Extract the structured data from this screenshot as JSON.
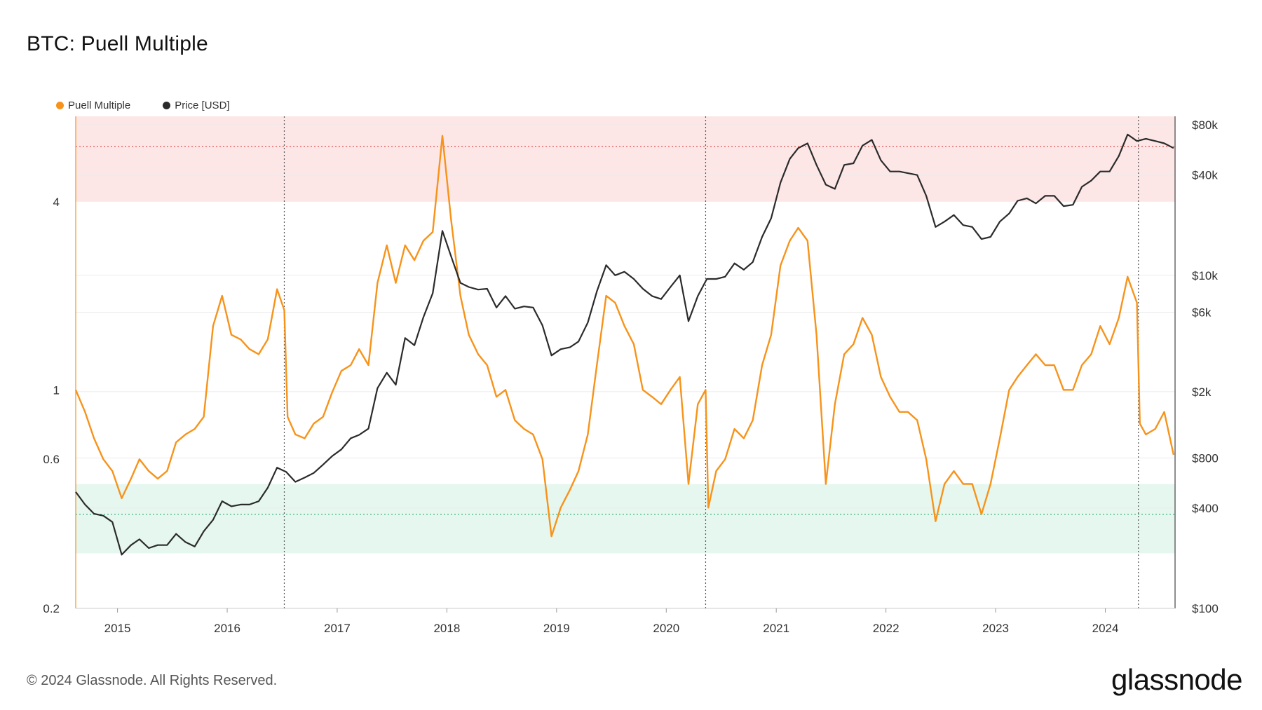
{
  "title": "BTC: Puell Multiple",
  "footer": "© 2024 Glassnode. All Rights Reserved.",
  "logo_text": "glassnode",
  "legend": [
    {
      "label": "Puell Multiple",
      "color": "#f7931a"
    },
    {
      "label": "Price [USD]",
      "color": "#2b2b2b"
    }
  ],
  "chart_data": {
    "type": "line",
    "title": "BTC: Puell Multiple",
    "x_range": [
      "2014-08-15",
      "2024-08-20"
    ],
    "x_tick_labels": [
      "2015",
      "2016",
      "2017",
      "2018",
      "2019",
      "2020",
      "2021",
      "2022",
      "2023",
      "2024"
    ],
    "y_left": {
      "scale": "log",
      "range": [
        0.2,
        7.5
      ],
      "tick_labels": [
        "0.2",
        "0.6",
        "1",
        "4"
      ],
      "tick_values": [
        0.2,
        0.6,
        1,
        4
      ]
    },
    "y_right": {
      "scale": "log",
      "range": [
        100,
        90000
      ],
      "tick_labels": [
        "$100",
        "$400",
        "$800",
        "$2k",
        "$6k",
        "$10k",
        "$40k",
        "$80k"
      ],
      "tick_values": [
        100,
        400,
        800,
        2000,
        6000,
        10000,
        40000,
        80000
      ]
    },
    "zones": {
      "overvalued": {
        "from": 4,
        "to": 7.5,
        "color": "#fde6e6"
      },
      "undervalued": {
        "from": 0.3,
        "to": 0.5,
        "color": "#e6f7ef"
      }
    },
    "reference_lines": [
      {
        "value": 6.0,
        "color": "#e05555"
      },
      {
        "value": 0.4,
        "color": "#3fb27f"
      }
    ],
    "halving_dates": [
      "2016-07-09",
      "2020-05-11",
      "2024-04-20"
    ],
    "series": [
      {
        "name": "Puell Multiple",
        "color": "#f7931a",
        "points": [
          [
            "2014-08-15",
            1.0
          ],
          [
            "2014-09-15",
            0.85
          ],
          [
            "2014-10-15",
            0.7
          ],
          [
            "2014-11-15",
            0.6
          ],
          [
            "2014-12-15",
            0.55
          ],
          [
            "2015-01-15",
            0.45
          ],
          [
            "2015-02-15",
            0.52
          ],
          [
            "2015-03-15",
            0.6
          ],
          [
            "2015-04-15",
            0.55
          ],
          [
            "2015-05-15",
            0.52
          ],
          [
            "2015-06-15",
            0.55
          ],
          [
            "2015-07-15",
            0.68
          ],
          [
            "2015-08-15",
            0.72
          ],
          [
            "2015-09-15",
            0.75
          ],
          [
            "2015-10-15",
            0.82
          ],
          [
            "2015-11-15",
            1.6
          ],
          [
            "2015-12-15",
            2.0
          ],
          [
            "2016-01-15",
            1.5
          ],
          [
            "2016-02-15",
            1.45
          ],
          [
            "2016-03-15",
            1.35
          ],
          [
            "2016-04-15",
            1.3
          ],
          [
            "2016-05-15",
            1.45
          ],
          [
            "2016-06-15",
            2.1
          ],
          [
            "2016-07-09",
            1.8
          ],
          [
            "2016-07-20",
            0.82
          ],
          [
            "2016-08-15",
            0.72
          ],
          [
            "2016-09-15",
            0.7
          ],
          [
            "2016-10-15",
            0.78
          ],
          [
            "2016-11-15",
            0.82
          ],
          [
            "2016-12-15",
            0.98
          ],
          [
            "2017-01-15",
            1.15
          ],
          [
            "2017-02-15",
            1.2
          ],
          [
            "2017-03-15",
            1.35
          ],
          [
            "2017-04-15",
            1.2
          ],
          [
            "2017-05-15",
            2.2
          ],
          [
            "2017-06-15",
            2.9
          ],
          [
            "2017-07-15",
            2.2
          ],
          [
            "2017-08-15",
            2.9
          ],
          [
            "2017-09-15",
            2.6
          ],
          [
            "2017-10-15",
            3.0
          ],
          [
            "2017-11-15",
            3.2
          ],
          [
            "2017-12-17",
            6.5
          ],
          [
            "2018-01-15",
            3.5
          ],
          [
            "2018-02-15",
            2.0
          ],
          [
            "2018-03-15",
            1.5
          ],
          [
            "2018-04-15",
            1.3
          ],
          [
            "2018-05-15",
            1.2
          ],
          [
            "2018-06-15",
            0.95
          ],
          [
            "2018-07-15",
            1.0
          ],
          [
            "2018-08-15",
            0.8
          ],
          [
            "2018-09-15",
            0.75
          ],
          [
            "2018-10-15",
            0.72
          ],
          [
            "2018-11-15",
            0.6
          ],
          [
            "2018-12-15",
            0.34
          ],
          [
            "2019-01-15",
            0.42
          ],
          [
            "2019-02-15",
            0.48
          ],
          [
            "2019-03-15",
            0.55
          ],
          [
            "2019-04-15",
            0.72
          ],
          [
            "2019-05-15",
            1.2
          ],
          [
            "2019-06-15",
            2.0
          ],
          [
            "2019-07-15",
            1.9
          ],
          [
            "2019-08-15",
            1.6
          ],
          [
            "2019-09-15",
            1.4
          ],
          [
            "2019-10-15",
            1.0
          ],
          [
            "2019-11-15",
            0.95
          ],
          [
            "2019-12-15",
            0.9
          ],
          [
            "2020-01-15",
            1.0
          ],
          [
            "2020-02-15",
            1.1
          ],
          [
            "2020-03-15",
            0.5
          ],
          [
            "2020-04-15",
            0.9
          ],
          [
            "2020-05-11",
            1.0
          ],
          [
            "2020-05-20",
            0.42
          ],
          [
            "2020-06-15",
            0.55
          ],
          [
            "2020-07-15",
            0.6
          ],
          [
            "2020-08-15",
            0.75
          ],
          [
            "2020-09-15",
            0.7
          ],
          [
            "2020-10-15",
            0.8
          ],
          [
            "2020-11-15",
            1.2
          ],
          [
            "2020-12-15",
            1.5
          ],
          [
            "2021-01-15",
            2.5
          ],
          [
            "2021-02-15",
            3.0
          ],
          [
            "2021-03-15",
            3.3
          ],
          [
            "2021-04-15",
            3.0
          ],
          [
            "2021-05-15",
            1.5
          ],
          [
            "2021-06-15",
            0.5
          ],
          [
            "2021-07-15",
            0.9
          ],
          [
            "2021-08-15",
            1.3
          ],
          [
            "2021-09-15",
            1.4
          ],
          [
            "2021-10-15",
            1.7
          ],
          [
            "2021-11-15",
            1.5
          ],
          [
            "2021-12-15",
            1.1
          ],
          [
            "2022-01-15",
            0.95
          ],
          [
            "2022-02-15",
            0.85
          ],
          [
            "2022-03-15",
            0.85
          ],
          [
            "2022-04-15",
            0.8
          ],
          [
            "2022-05-15",
            0.6
          ],
          [
            "2022-06-15",
            0.38
          ],
          [
            "2022-07-15",
            0.5
          ],
          [
            "2022-08-15",
            0.55
          ],
          [
            "2022-09-15",
            0.5
          ],
          [
            "2022-10-15",
            0.5
          ],
          [
            "2022-11-15",
            0.4
          ],
          [
            "2022-12-15",
            0.5
          ],
          [
            "2023-01-15",
            0.7
          ],
          [
            "2023-02-15",
            1.0
          ],
          [
            "2023-03-15",
            1.1
          ],
          [
            "2023-04-15",
            1.2
          ],
          [
            "2023-05-15",
            1.3
          ],
          [
            "2023-06-15",
            1.2
          ],
          [
            "2023-07-15",
            1.2
          ],
          [
            "2023-08-15",
            1.0
          ],
          [
            "2023-09-15",
            1.0
          ],
          [
            "2023-10-15",
            1.2
          ],
          [
            "2023-11-15",
            1.3
          ],
          [
            "2023-12-15",
            1.6
          ],
          [
            "2024-01-15",
            1.4
          ],
          [
            "2024-02-15",
            1.7
          ],
          [
            "2024-03-15",
            2.3
          ],
          [
            "2024-04-15",
            1.9
          ],
          [
            "2024-04-25",
            0.78
          ],
          [
            "2024-05-15",
            0.72
          ],
          [
            "2024-06-15",
            0.75
          ],
          [
            "2024-07-15",
            0.85
          ],
          [
            "2024-08-15",
            0.62
          ]
        ]
      },
      {
        "name": "Price [USD]",
        "color": "#2b2b2b",
        "points": [
          [
            "2014-08-15",
            500
          ],
          [
            "2014-09-15",
            420
          ],
          [
            "2014-10-15",
            370
          ],
          [
            "2014-11-15",
            360
          ],
          [
            "2014-12-15",
            330
          ],
          [
            "2015-01-15",
            210
          ],
          [
            "2015-02-15",
            240
          ],
          [
            "2015-03-15",
            260
          ],
          [
            "2015-04-15",
            230
          ],
          [
            "2015-05-15",
            240
          ],
          [
            "2015-06-15",
            240
          ],
          [
            "2015-07-15",
            280
          ],
          [
            "2015-08-15",
            250
          ],
          [
            "2015-09-15",
            235
          ],
          [
            "2015-10-15",
            290
          ],
          [
            "2015-11-15",
            340
          ],
          [
            "2015-12-15",
            440
          ],
          [
            "2016-01-15",
            410
          ],
          [
            "2016-02-15",
            420
          ],
          [
            "2016-03-15",
            420
          ],
          [
            "2016-04-15",
            440
          ],
          [
            "2016-05-15",
            530
          ],
          [
            "2016-06-15",
            700
          ],
          [
            "2016-07-15",
            660
          ],
          [
            "2016-08-15",
            575
          ],
          [
            "2016-09-15",
            610
          ],
          [
            "2016-10-15",
            650
          ],
          [
            "2016-11-15",
            730
          ],
          [
            "2016-12-15",
            820
          ],
          [
            "2017-01-15",
            900
          ],
          [
            "2017-02-15",
            1050
          ],
          [
            "2017-03-15",
            1100
          ],
          [
            "2017-04-15",
            1200
          ],
          [
            "2017-05-15",
            2100
          ],
          [
            "2017-06-15",
            2600
          ],
          [
            "2017-07-15",
            2200
          ],
          [
            "2017-08-15",
            4200
          ],
          [
            "2017-09-15",
            3800
          ],
          [
            "2017-10-15",
            5600
          ],
          [
            "2017-11-15",
            7800
          ],
          [
            "2017-12-17",
            18500
          ],
          [
            "2018-01-15",
            13000
          ],
          [
            "2018-02-15",
            9000
          ],
          [
            "2018-03-15",
            8500
          ],
          [
            "2018-04-15",
            8200
          ],
          [
            "2018-05-15",
            8300
          ],
          [
            "2018-06-15",
            6400
          ],
          [
            "2018-07-15",
            7500
          ],
          [
            "2018-08-15",
            6300
          ],
          [
            "2018-09-15",
            6500
          ],
          [
            "2018-10-15",
            6400
          ],
          [
            "2018-11-15",
            5000
          ],
          [
            "2018-12-15",
            3300
          ],
          [
            "2019-01-15",
            3600
          ],
          [
            "2019-02-15",
            3700
          ],
          [
            "2019-03-15",
            4000
          ],
          [
            "2019-04-15",
            5200
          ],
          [
            "2019-05-15",
            8000
          ],
          [
            "2019-06-15",
            11500
          ],
          [
            "2019-07-15",
            10000
          ],
          [
            "2019-08-15",
            10500
          ],
          [
            "2019-09-15",
            9500
          ],
          [
            "2019-10-15",
            8300
          ],
          [
            "2019-11-15",
            7500
          ],
          [
            "2019-12-15",
            7200
          ],
          [
            "2020-01-15",
            8500
          ],
          [
            "2020-02-15",
            10000
          ],
          [
            "2020-03-15",
            5300
          ],
          [
            "2020-04-15",
            7500
          ],
          [
            "2020-05-15",
            9500
          ],
          [
            "2020-06-15",
            9500
          ],
          [
            "2020-07-15",
            9800
          ],
          [
            "2020-08-15",
            11800
          ],
          [
            "2020-09-15",
            10800
          ],
          [
            "2020-10-15",
            12000
          ],
          [
            "2020-11-15",
            17000
          ],
          [
            "2020-12-15",
            22000
          ],
          [
            "2021-01-15",
            36000
          ],
          [
            "2021-02-15",
            50000
          ],
          [
            "2021-03-15",
            58000
          ],
          [
            "2021-04-15",
            62000
          ],
          [
            "2021-05-15",
            46000
          ],
          [
            "2021-06-15",
            35000
          ],
          [
            "2021-07-15",
            33000
          ],
          [
            "2021-08-15",
            46000
          ],
          [
            "2021-09-15",
            47000
          ],
          [
            "2021-10-15",
            60000
          ],
          [
            "2021-11-15",
            65000
          ],
          [
            "2021-12-15",
            49000
          ],
          [
            "2022-01-15",
            42000
          ],
          [
            "2022-02-15",
            42000
          ],
          [
            "2022-03-15",
            41000
          ],
          [
            "2022-04-15",
            40000
          ],
          [
            "2022-05-15",
            30000
          ],
          [
            "2022-06-15",
            19500
          ],
          [
            "2022-07-15",
            21000
          ],
          [
            "2022-08-15",
            23000
          ],
          [
            "2022-09-15",
            20000
          ],
          [
            "2022-10-15",
            19500
          ],
          [
            "2022-11-15",
            16500
          ],
          [
            "2022-12-15",
            17000
          ],
          [
            "2023-01-15",
            21000
          ],
          [
            "2023-02-15",
            23500
          ],
          [
            "2023-03-15",
            28000
          ],
          [
            "2023-04-15",
            29000
          ],
          [
            "2023-05-15",
            27000
          ],
          [
            "2023-06-15",
            30000
          ],
          [
            "2023-07-15",
            30000
          ],
          [
            "2023-08-15",
            26000
          ],
          [
            "2023-09-15",
            26500
          ],
          [
            "2023-10-15",
            34000
          ],
          [
            "2023-11-15",
            37000
          ],
          [
            "2023-12-15",
            42000
          ],
          [
            "2024-01-15",
            42000
          ],
          [
            "2024-02-15",
            52000
          ],
          [
            "2024-03-15",
            70000
          ],
          [
            "2024-04-15",
            64000
          ],
          [
            "2024-05-15",
            66000
          ],
          [
            "2024-06-15",
            64000
          ],
          [
            "2024-07-15",
            62000
          ],
          [
            "2024-08-15",
            58000
          ]
        ]
      }
    ]
  }
}
